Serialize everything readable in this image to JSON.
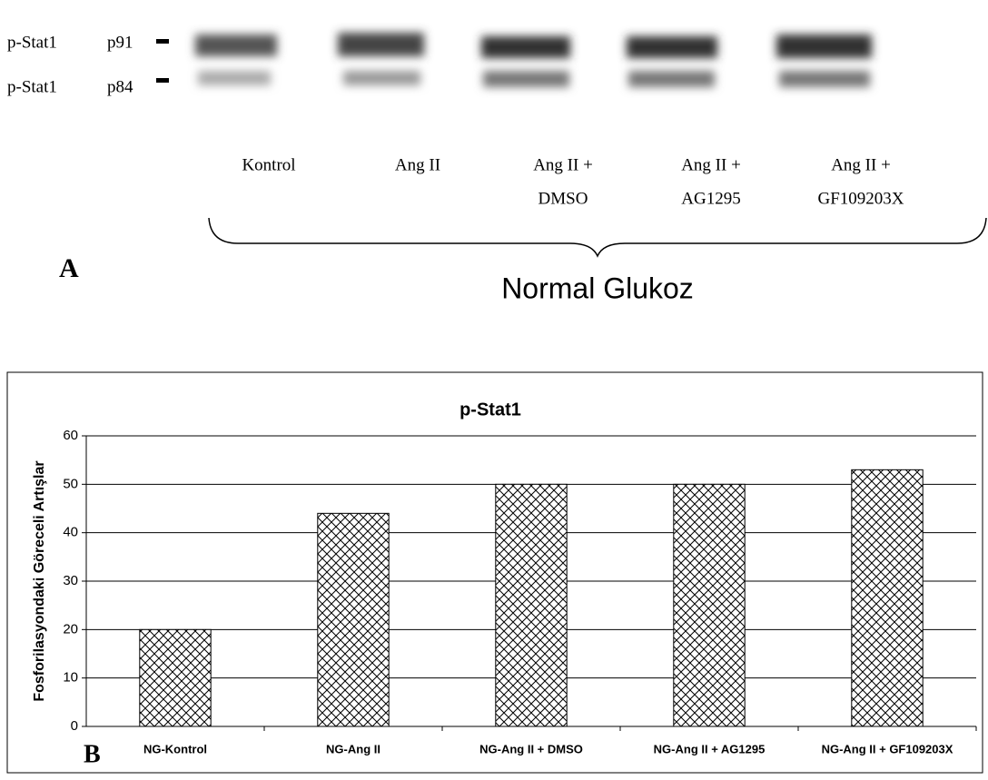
{
  "blot": {
    "markers": [
      {
        "protein": "p-Stat1",
        "band": "p91"
      },
      {
        "protein": "p-Stat1",
        "band": "p84"
      }
    ],
    "lanes": [
      [
        "Kontrol"
      ],
      [
        "Ang II"
      ],
      [
        "Ang II +",
        "DMSO"
      ],
      [
        "Ang II +",
        "AG1295"
      ],
      [
        "Ang II +",
        "GF109203X"
      ]
    ],
    "group": "Normal Glukoz",
    "panel": "A"
  },
  "chart_data": {
    "type": "bar",
    "title": "p-Stat1",
    "panel": "B",
    "y_label": "Fosforilasyondaki Göreceli Artışlar",
    "categories": [
      "NG-Kontrol",
      "NG-Ang II",
      "NG-Ang II + DMSO",
      "NG-Ang II + AG1295",
      "NG-Ang II + GF109203X"
    ],
    "values": [
      20,
      44,
      50,
      50,
      53
    ],
    "color": "#000000",
    "ylim": [
      0,
      60
    ],
    "yticks": [
      0,
      10,
      20,
      30,
      40,
      50,
      60
    ],
    "grid": true
  }
}
